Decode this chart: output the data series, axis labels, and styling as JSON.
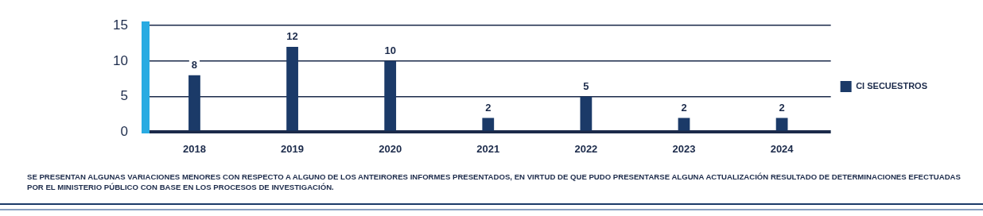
{
  "chart_data": {
    "type": "bar",
    "categories": [
      "2018",
      "2019",
      "2020",
      "2021",
      "2022",
      "2023",
      "2024"
    ],
    "series": [
      {
        "name": "CI SECUESTROS",
        "color": "#1b3a68",
        "values": [
          8,
          12,
          10,
          2,
          5,
          2,
          2
        ]
      }
    ],
    "ylim": [
      0,
      15
    ],
    "yticks": [
      0,
      5,
      10,
      15
    ],
    "grid": "y",
    "legend": "right",
    "data_labels": true,
    "annotations": [
      "SE PRESENTAN ALGUNAS VARIACIONES MENORES CON RESPECTO A ALGUNO DE LOS ANTEIRORES INFORMES PRESENTADOS, EN VIRTUD DE QUE PUDO PRESENTARSE ALGUNA ACTUALIZACIÓN RESULTADO DE DETERMINACIONES EFECTUADAS POR EL MINISTERIO PÚBLICO CON BASE EN LOS PROCESOS DE INVESTIGACIÓN."
    ]
  }
}
